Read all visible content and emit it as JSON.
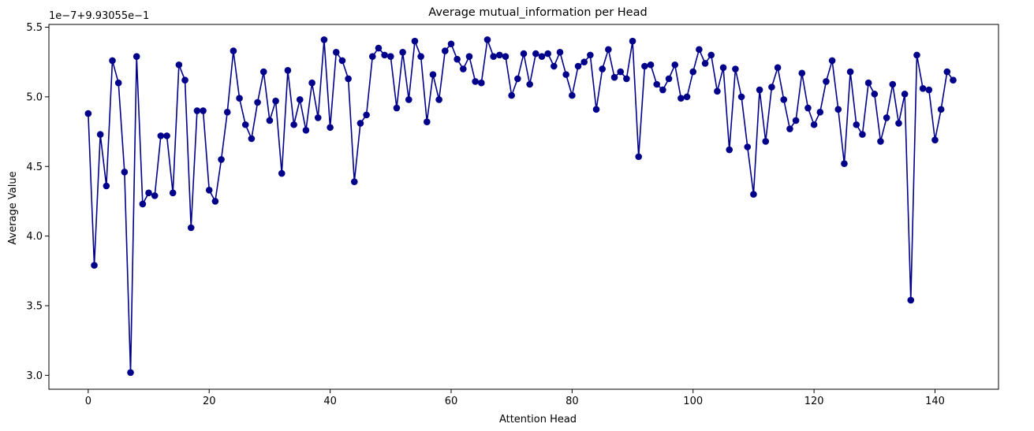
{
  "chart_data": {
    "type": "line",
    "title": "Average mutual_information per Head",
    "xlabel": "Attention Head",
    "ylabel": "Average Value",
    "y_offset_label": "1e−7+9.93055e−1",
    "xlim": [
      -6.5,
      150.5
    ],
    "ylim": [
      2.9,
      5.52
    ],
    "xticks": [
      0,
      20,
      40,
      60,
      80,
      100,
      120,
      140
    ],
    "yticks": [
      3.0,
      3.5,
      4.0,
      4.5,
      5.0,
      5.5
    ],
    "ytick_labels": [
      "3.0",
      "3.5",
      "4.0",
      "4.5",
      "5.0",
      "5.5"
    ],
    "grid": false,
    "line_color": "#00008b",
    "marker": "circle",
    "series": [
      {
        "values": [
          4.88,
          3.79,
          4.73,
          4.36,
          5.26,
          5.1,
          4.46,
          3.02,
          5.29,
          4.23,
          4.31,
          4.29,
          4.72,
          4.72,
          4.31,
          5.23,
          5.12,
          4.06,
          4.9,
          4.9,
          4.33,
          4.25,
          4.55,
          4.89,
          5.33,
          4.99,
          4.8,
          4.7,
          4.96,
          5.18,
          4.83,
          4.97,
          4.45,
          5.19,
          4.8,
          4.98,
          4.76,
          5.1,
          4.85,
          5.41,
          4.78,
          5.32,
          5.26,
          5.13,
          4.39,
          4.81,
          4.87,
          5.29,
          5.35,
          5.3,
          5.29,
          4.92,
          5.32,
          4.98,
          5.4,
          5.29,
          4.82,
          5.16,
          4.98,
          5.33,
          5.38,
          5.27,
          5.2,
          5.29,
          5.11,
          5.1,
          5.41,
          5.29,
          5.3,
          5.29,
          5.01,
          5.13,
          5.31,
          5.09,
          5.31,
          5.29,
          5.31,
          5.22,
          5.32,
          5.16,
          5.01,
          5.22,
          5.25,
          5.3,
          4.91,
          5.2,
          5.34,
          5.14,
          5.18,
          5.13,
          5.4,
          4.57,
          5.22,
          5.23,
          5.09,
          5.05,
          5.13,
          5.23,
          4.99,
          5.0,
          5.18,
          5.34,
          5.24,
          5.3,
          5.04,
          5.21,
          4.62,
          5.2,
          5.0,
          4.64,
          4.3,
          5.05,
          4.68,
          5.07,
          5.21,
          4.98,
          4.77,
          4.83,
          5.17,
          4.92,
          4.8,
          4.89,
          5.11,
          5.26,
          4.91,
          4.52,
          5.18,
          4.8,
          4.73,
          5.1,
          5.02,
          4.68,
          4.85,
          5.09,
          4.81,
          5.02,
          3.54,
          5.3,
          5.06,
          5.05,
          4.69,
          4.91,
          5.18,
          5.12
        ]
      }
    ]
  }
}
